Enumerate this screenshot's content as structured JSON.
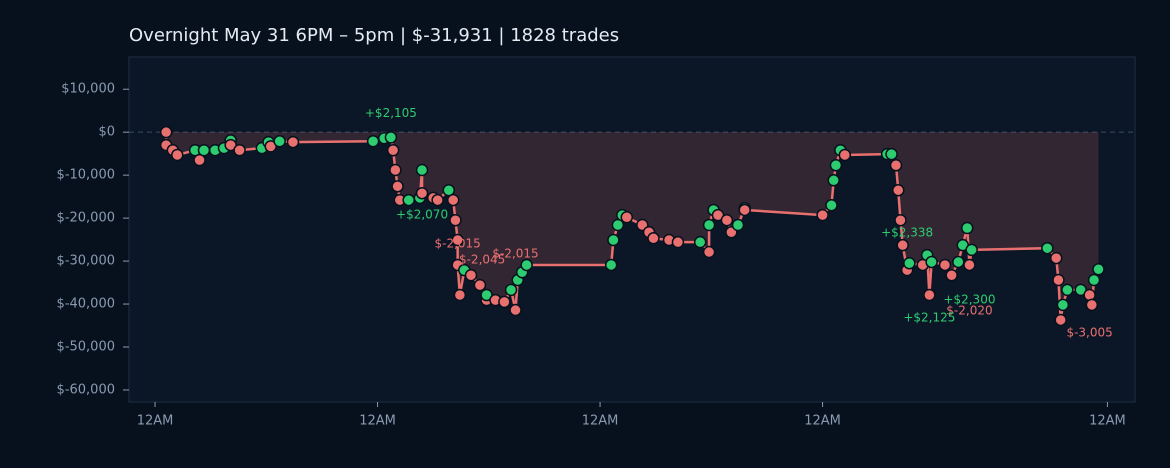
{
  "chart_data": {
    "type": "line",
    "title": "Overnight  May 31 6PM – 5pm  |  $-31,931  |  1828 trades",
    "x": [
      0.05,
      0.05,
      0.08,
      0.1,
      0.18,
      0.2,
      0.22,
      0.27,
      0.31,
      0.34,
      0.34,
      0.38,
      0.48,
      0.51,
      0.52,
      0.56,
      0.62,
      0.98,
      1.03,
      1.06,
      1.07,
      1.08,
      1.09,
      1.1,
      1.14,
      1.19,
      1.2,
      1.2,
      1.25,
      1.27,
      1.32,
      1.34,
      1.35,
      1.36,
      1.36,
      1.37,
      1.39,
      1.42,
      1.46,
      1.49,
      1.49,
      1.53,
      1.57,
      1.6,
      1.62,
      1.63,
      1.65,
      1.67,
      2.05,
      2.06,
      2.08,
      2.1,
      2.12,
      2.19,
      2.22,
      2.24,
      2.31,
      2.35,
      2.45,
      2.49,
      2.49,
      2.51,
      2.53,
      2.57,
      2.59,
      2.62,
      2.65,
      2.65,
      3.0,
      3.04,
      3.05,
      3.06,
      3.08,
      3.1,
      3.29,
      3.31,
      3.33,
      3.34,
      3.35,
      3.36,
      3.38,
      3.39,
      3.45,
      3.47,
      3.48,
      3.49,
      3.55,
      3.58,
      3.61,
      3.63,
      3.65,
      3.66,
      3.67,
      4.01,
      4.05,
      4.06,
      4.07,
      4.08,
      4.1,
      4.16,
      4.2,
      4.21,
      4.22,
      4.24
    ],
    "values": [
      0,
      -3000,
      -4200,
      -5300,
      -4200,
      -6500,
      -4200,
      -4200,
      -3700,
      -1900,
      -3000,
      -4200,
      -3700,
      -2300,
      -3300,
      -2100,
      -2300,
      -2100,
      -1400,
      -1200,
      -4200,
      -8800,
      -12600,
      -15800,
      -15800,
      -15300,
      -8800,
      -14200,
      -15300,
      -15800,
      -13500,
      -15800,
      -20500,
      -25100,
      -30900,
      -37900,
      -32100,
      -33300,
      -35600,
      -39100,
      -37900,
      -39100,
      -39500,
      -36700,
      -41400,
      -34400,
      -32600,
      -30900,
      -30900,
      -25100,
      -21600,
      -19300,
      -19800,
      -21600,
      -23300,
      -24700,
      -25100,
      -25600,
      -25600,
      -27900,
      -21600,
      -18100,
      -19300,
      -20500,
      -23300,
      -21600,
      -17700,
      -18100,
      -19300,
      -17000,
      -11200,
      -7700,
      -4200,
      -5300,
      -5100,
      -5100,
      -7700,
      -13500,
      -20500,
      -26300,
      -32100,
      -30500,
      -30900,
      -28600,
      -37900,
      -30200,
      -30900,
      -33300,
      -30200,
      -26300,
      -22300,
      -30900,
      -27400,
      -27000,
      -29300,
      -34400,
      -43700,
      -40200,
      -36700,
      -36700,
      -37900,
      -40200,
      -34400,
      -31900
    ],
    "color": "#e8706f",
    "up_color": "#2ecc71",
    "down_color": "#e8706f",
    "xlim": [
      -0.117,
      4.404
    ],
    "xticks": [
      {
        "value": 0,
        "label": "12AM"
      },
      {
        "value": 1,
        "label": "12AM"
      },
      {
        "value": 2,
        "label": "12AM"
      },
      {
        "value": 3,
        "label": "12AM"
      },
      {
        "value": 4.28,
        "label": "12AM"
      }
    ],
    "ylim": [
      -62800,
      17500
    ],
    "yticks": [
      {
        "value": 10000,
        "label": "$10,000"
      },
      {
        "value": 0,
        "label": "$0"
      },
      {
        "value": -10000,
        "label": "$-10,000"
      },
      {
        "value": -20000,
        "label": "$-20,000"
      },
      {
        "value": -30000,
        "label": "$-30,000"
      },
      {
        "value": -40000,
        "label": "$-40,000"
      },
      {
        "value": -50000,
        "label": "$-50,000"
      },
      {
        "value": -60000,
        "label": "$-60,000"
      }
    ],
    "annotations": [
      {
        "text": "+$2,105",
        "x": 1.06,
        "y": 4400,
        "color": "#2ecc71"
      },
      {
        "text": "+$2,070",
        "x": 1.2,
        "y": -19300,
        "color": "#2ecc71"
      },
      {
        "text": "$-2,015",
        "x": 1.36,
        "y": -26000,
        "color": "#e8706f"
      },
      {
        "text": "$-2,045",
        "x": 1.47,
        "y": -29800,
        "color": "#e8706f"
      },
      {
        "text": "$-2,015",
        "x": 1.62,
        "y": -28400,
        "color": "#e8706f"
      },
      {
        "text": "+$2,338",
        "x": 3.38,
        "y": -23500,
        "color": "#2ecc71"
      },
      {
        "text": "+$2,300",
        "x": 3.66,
        "y": -39100,
        "color": "#2ecc71"
      },
      {
        "text": "$-2,020",
        "x": 3.66,
        "y": -41600,
        "color": "#e8706f"
      },
      {
        "text": "+$2,125",
        "x": 3.48,
        "y": -43300,
        "color": "#2ecc71"
      },
      {
        "text": "$-3,005",
        "x": 4.2,
        "y": -46700,
        "color": "#e8706f"
      }
    ]
  }
}
